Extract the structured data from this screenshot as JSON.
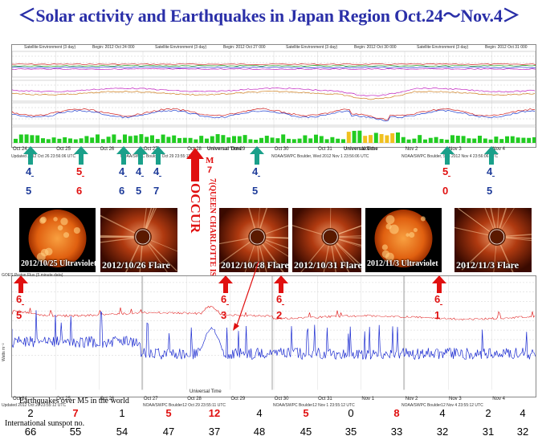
{
  "title": "＜Solar activity and Earthquakes in Japan Region Oct.24～Nov.4＞",
  "top_chart": {
    "panel_headers": [
      {
        "left": "Satellite Environment (3 day)",
        "right": "Begin: 2012 Oct 24 000"
      },
      {
        "left": "Satellite Environment (3 day)",
        "right": "Begin: 2012 Oct 27 000"
      },
      {
        "left": "Satellite Environment (3 day)",
        "right": "Begin: 2012 Oct 30 000"
      },
      {
        "left": "Satellite Environment (3 day)",
        "right": "Begin: 2012 Oct 31 000"
      }
    ],
    "date_labels": [
      "Oct 24",
      "Oct 25",
      "Oct 26",
      "Oct 27",
      "Oct 28",
      "Oct 29",
      "Oct 30",
      "Oct 31",
      "Nov 1",
      "Nov 2",
      "Nov 3",
      "Nov 4"
    ],
    "universal_time": "Universal Time",
    "updated_lines": [
      "Updated 2012 Oct 26 23:56:06 UTC",
      "NOAA/SWPC Boulder, Oct 29 23:55:11",
      "NOAA/SWPC Boulder, Wed 2012 Nov 1 23:56:06 UTC",
      "NOAA/SWPC Boulder, Sun 2012 Nov 4 23:56:06 UTC"
    ]
  },
  "kp_markers": [
    {
      "top": "4",
      "bottom": "5",
      "color": "blue"
    },
    {
      "top": "5",
      "bottom": "6",
      "color": "red"
    },
    {
      "top": "4",
      "bottom": "6",
      "color": "blue"
    },
    {
      "top": "4",
      "bottom": "5",
      "color": "blue"
    },
    {
      "top": "4",
      "bottom": "7",
      "color": "blue"
    },
    {
      "top": "4",
      "bottom": "5",
      "color": "blue"
    },
    {
      "top": "5",
      "bottom": "0",
      "color": "red"
    },
    {
      "top": "4",
      "bottom": "5",
      "color": "blue"
    }
  ],
  "occur": {
    "m_label": "M",
    "m_value": "7",
    "word": "OCCUR",
    "m_value2": "7",
    "place": "(QUEEN CHARLOTTE ISLANDS)"
  },
  "images": [
    {
      "label": "2012/10/25 Ultraviolet",
      "kind": "sun"
    },
    {
      "label": "2012/10/26 Flare",
      "kind": "corona"
    },
    {
      "label": "2012/10/28 Flare",
      "kind": "corona"
    },
    {
      "label": "2012/10/31 Flare",
      "kind": "corona"
    },
    {
      "label": "2012/11/3 Ultraviolet",
      "kind": "sun"
    },
    {
      "label": "2012/11/3 Flare",
      "kind": "corona"
    }
  ],
  "xray_markers": [
    {
      "top": "6",
      "bottom": "5"
    },
    {
      "top": "6",
      "bottom": "3"
    },
    {
      "top": "6",
      "bottom": "2"
    },
    {
      "top": "6",
      "bottom": "1"
    }
  ],
  "lower_chart": {
    "header": "GOES Proton Flux (5 minute data)",
    "ylabel": "Watts m⁻²",
    "date_labels": [
      "Oct 24",
      "Oct 25",
      "Oct 26",
      "Oct 27",
      "Oct 28",
      "Oct 29",
      "Oct 30",
      "Oct 31",
      "Nov 1",
      "Nov 2",
      "Nov 3",
      "Nov 4"
    ],
    "universal_time": "Universal Time",
    "updated_line": "Updated 2012 Oct 26 23:55:12 UTC",
    "boulder1": "NOAA/SWPC Boulder12 Oct 29 23:55:11 UTC",
    "boulder2": "NOAA/SWPC Boulder12 Nov 1 23:55:12 UTC",
    "boulder3": "NOAA/SWPC Boulder12 Nov 4 23:55:12 UTC"
  },
  "bottom": {
    "eq_caption": "Earthquakes over M5 in the world",
    "eq_values": [
      {
        "v": "2",
        "red": false
      },
      {
        "v": "7",
        "red": true
      },
      {
        "v": "1",
        "red": false
      },
      {
        "v": "5",
        "red": true
      },
      {
        "v": "12",
        "red": true
      },
      {
        "v": "4",
        "red": false
      },
      {
        "v": "5",
        "red": true
      },
      {
        "v": "0",
        "red": false
      },
      {
        "v": "8",
        "red": true
      },
      {
        "v": "4",
        "red": false
      },
      {
        "v": "2",
        "red": false
      },
      {
        "v": "4",
        "red": false
      }
    ],
    "sunspot_caption": "International sunspot no.",
    "sunspot_values": [
      "66",
      "55",
      "54",
      "47",
      "37",
      "48",
      "45",
      "35",
      "33",
      "32",
      "31",
      "32"
    ]
  },
  "colors": {
    "title": "#2a2fa8",
    "red_arrow": "#e01010",
    "teal_arrow": "#1aa08a",
    "blue_number": "#1f3c9a",
    "red_line": "#e02020",
    "blue_line": "#1a2ad0"
  }
}
